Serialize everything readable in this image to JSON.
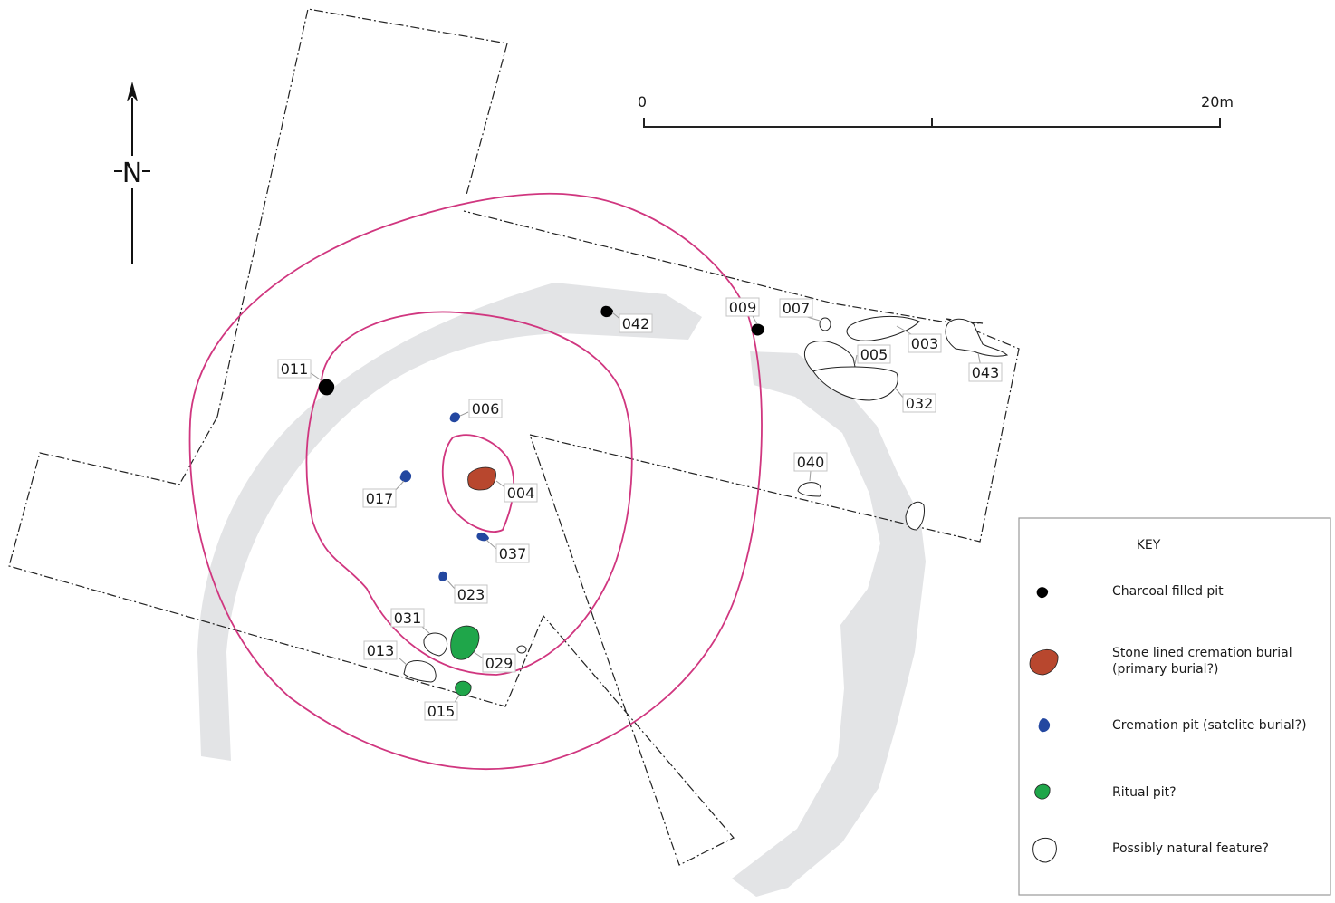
{
  "north": {
    "letter": "N"
  },
  "scale_bar": {
    "start_label": "0",
    "end_label": "20m"
  },
  "features": [
    {
      "id": "011",
      "type": "charcoal"
    },
    {
      "id": "042",
      "type": "charcoal"
    },
    {
      "id": "009",
      "type": "charcoal"
    },
    {
      "id": "007",
      "type": "natural"
    },
    {
      "id": "005",
      "type": "natural"
    },
    {
      "id": "003",
      "type": "natural"
    },
    {
      "id": "043",
      "type": "natural"
    },
    {
      "id": "032",
      "type": "natural"
    },
    {
      "id": "006",
      "type": "cremation_pit"
    },
    {
      "id": "017",
      "type": "cremation_pit"
    },
    {
      "id": "004",
      "type": "stone_lined_burial"
    },
    {
      "id": "037",
      "type": "cremation_pit"
    },
    {
      "id": "023",
      "type": "cremation_pit"
    },
    {
      "id": "040",
      "type": "natural"
    },
    {
      "id": "031",
      "type": "natural"
    },
    {
      "id": "013",
      "type": "natural"
    },
    {
      "id": "029",
      "type": "ritual_pit"
    },
    {
      "id": "015",
      "type": "ritual_pit"
    }
  ],
  "key": {
    "title": "KEY",
    "items": [
      {
        "lines": [
          "Charcoal filled pit"
        ],
        "color": "#000000"
      },
      {
        "lines": [
          "Stone lined cremation burial",
          "(primary burial?)"
        ],
        "color": "#b8472e"
      },
      {
        "lines": [
          "Cremation pit (satelite burial?)"
        ],
        "color": "#2347a0"
      },
      {
        "lines": [
          "Ritual pit?"
        ],
        "color": "#1fa64a"
      },
      {
        "lines": [
          "Possibly natural feature?"
        ],
        "color": "#ffffff"
      }
    ]
  },
  "colors": {
    "ring": "#d0367f",
    "ditch": "#e3e4e6",
    "outline": "#222222",
    "charcoal": "#000000",
    "stone_lined_burial": "#b8472e",
    "cremation_pit": "#2347a0",
    "ritual_pit": "#1fa64a",
    "natural": "#ffffff"
  }
}
